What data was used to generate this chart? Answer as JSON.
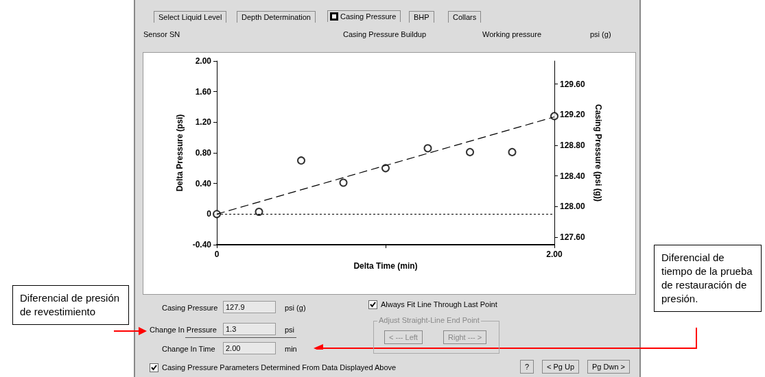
{
  "chart_data": {
    "type": "scatter",
    "xlabel": "Delta Time (min)",
    "ylabel": "Delta Pressure (psi)",
    "y2label": "Casing Pressure (psi (g))",
    "x": [
      0,
      0.25,
      0.5,
      0.75,
      1.0,
      1.25,
      1.5,
      1.75,
      2.0
    ],
    "series": [
      {
        "type": "scatter",
        "color": "#000000",
        "marker": "circle",
        "values": [
          0,
          0.03,
          0.7,
          0.41,
          0.6,
          0.86,
          0.81,
          0.81,
          1.28
        ]
      },
      {
        "type": "line",
        "color": "#000000",
        "marker": "none",
        "line_style": "dashed",
        "x": [
          0,
          2.0
        ],
        "values": [
          0,
          1.27
        ]
      }
    ],
    "xlim": [
      0,
      2.0
    ],
    "xticks": [
      0,
      {
        "value": 1.0,
        "label": null
      },
      {
        "value": 2.0,
        "label": "2.00"
      }
    ],
    "ylim": [
      -0.4,
      2.0
    ],
    "yticks": [
      {
        "value": -0.4,
        "label": "-0.40"
      },
      0,
      {
        "value": 0.4,
        "label": "0.40"
      },
      {
        "value": 0.8,
        "label": "0.80"
      },
      {
        "value": 1.2,
        "label": "1.20"
      },
      {
        "value": 1.6,
        "label": "1.60"
      },
      {
        "value": 2.0,
        "label": "2.00"
      }
    ],
    "y2lim": [
      127.5,
      129.9
    ],
    "y2ticks": [
      {
        "value": 127.6,
        "label": "127.60"
      },
      {
        "value": 128.0,
        "label": "128.00"
      },
      {
        "value": 128.4,
        "label": "128.40"
      },
      {
        "value": 128.8,
        "label": "128.80"
      },
      {
        "value": 129.2,
        "label": "129.20"
      },
      {
        "value": 129.6,
        "label": "129.60"
      }
    ],
    "ref_lines": [
      {
        "axis": "y",
        "value": 0,
        "color": "#000000",
        "line_style": "dotted"
      }
    ],
    "grid": false,
    "annotations": [
      "Select Liquid Level",
      "Depth Determination",
      "Casing Pressure",
      "BHP",
      "Collars",
      "Sensor SN",
      "Casing Pressure Buildup",
      "Working pressure",
      "psi (g)",
      "Casing Pressure",
      "127.9",
      "psi (g)",
      "Always Fit Line Through Last Point",
      "Adjust Straight-Line End Point",
      "< --- Left",
      "Right --- >",
      "Change In Pressure",
      "1.3",
      "psi",
      "Change In Time",
      "2.00",
      "min",
      "Casing Pressure Parameters Determined From Data Displayed Above",
      "?",
      "< Pg Up",
      "Pg Dwn >",
      "Diferencial de presión de revestimiento",
      "Diferencial de tiempo de la prueba de restauración de presión."
    ]
  }
}
